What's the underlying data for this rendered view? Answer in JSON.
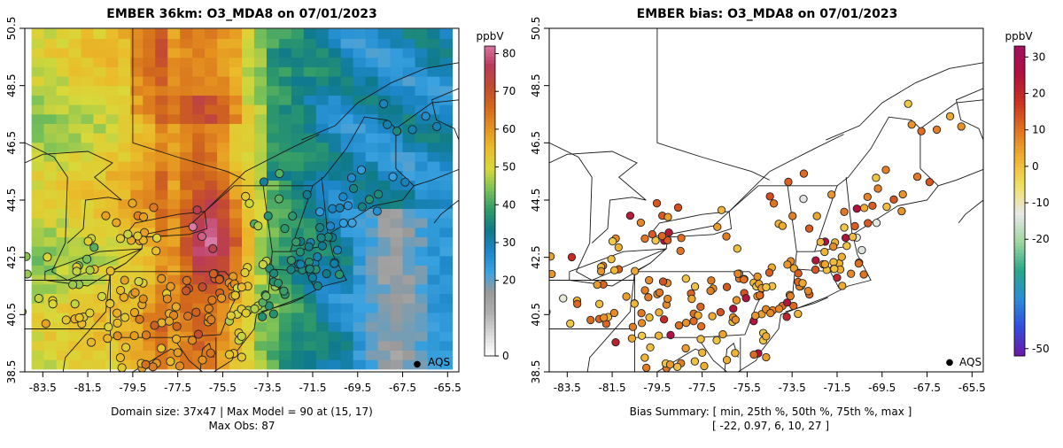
{
  "chart_data": [
    {
      "type": "map",
      "title": "EMBER 36km: O3_MDA8 on 07/01/2023",
      "xticks": [
        "-83.5",
        "-81.5",
        "-79.5",
        "-77.5",
        "-75.5",
        "-73.5",
        "-71.5",
        "-69.5",
        "-67.5",
        "-65.5"
      ],
      "yticks": [
        "38.5",
        "40.5",
        "42.5",
        "44.5",
        "46.5",
        "48.5",
        "50.5"
      ],
      "xlim": [
        -84.3,
        -65.0
      ],
      "ylim": [
        38.5,
        50.5
      ],
      "colorbar": {
        "unit": "ppbV",
        "ticks": [
          "0",
          "20",
          "30",
          "40",
          "50",
          "60",
          "70",
          "80"
        ],
        "range": [
          0,
          82
        ],
        "colors": [
          "#ffffff",
          "#d8d8d8",
          "#b0b0b0",
          "#9a9a9a",
          "#3aa2e0",
          "#1c86c8",
          "#0f7a8a",
          "#2f9a6a",
          "#7cc258",
          "#d8d83a",
          "#eabc2a",
          "#e49020",
          "#d2681c",
          "#c24a32",
          "#b93a5c",
          "#d879a6"
        ]
      },
      "legend": {
        "marker": "●",
        "label": "AQS"
      },
      "footer": [
        "Domain size: 37x47 | Max Model = 90 at (15, 17)",
        "Max Obs: 87"
      ]
    },
    {
      "type": "map",
      "title": "EMBER bias: O3_MDA8 on 07/01/2023",
      "xticks": [
        "-83.5",
        "-81.5",
        "-79.5",
        "-77.5",
        "-75.5",
        "-73.5",
        "-71.5",
        "-69.5",
        "-67.5",
        "-65.5"
      ],
      "yticks": [
        "38.5",
        "40.5",
        "42.5",
        "44.5",
        "46.5",
        "48.5",
        "50.5"
      ],
      "xlim": [
        -84.3,
        -65.0
      ],
      "ylim": [
        38.5,
        50.5
      ],
      "colorbar": {
        "unit": "ppbV",
        "ticks": [
          "-50",
          "-20",
          "-10",
          "0",
          "10",
          "20",
          "30"
        ],
        "range": [
          -52,
          33
        ],
        "colors": [
          "#6a1aa8",
          "#3050e0",
          "#2a8ed8",
          "#2aa88a",
          "#a0d8a0",
          "#e8e8e8",
          "#f0e060",
          "#f0b030",
          "#e07020",
          "#c83020",
          "#b01040",
          "#a01060"
        ]
      },
      "legend": {
        "marker": "●",
        "label": "AQS"
      },
      "bias_summary": {
        "min": -22,
        "p25": 0.97,
        "p50": 6,
        "p75": 10,
        "max": 27
      },
      "footer": [
        "Bias Summary: [ min, 25th %, 50th %, 75th %, max ]",
        "[ -22,   0.97,   6,   10,   27 ]"
      ]
    }
  ]
}
